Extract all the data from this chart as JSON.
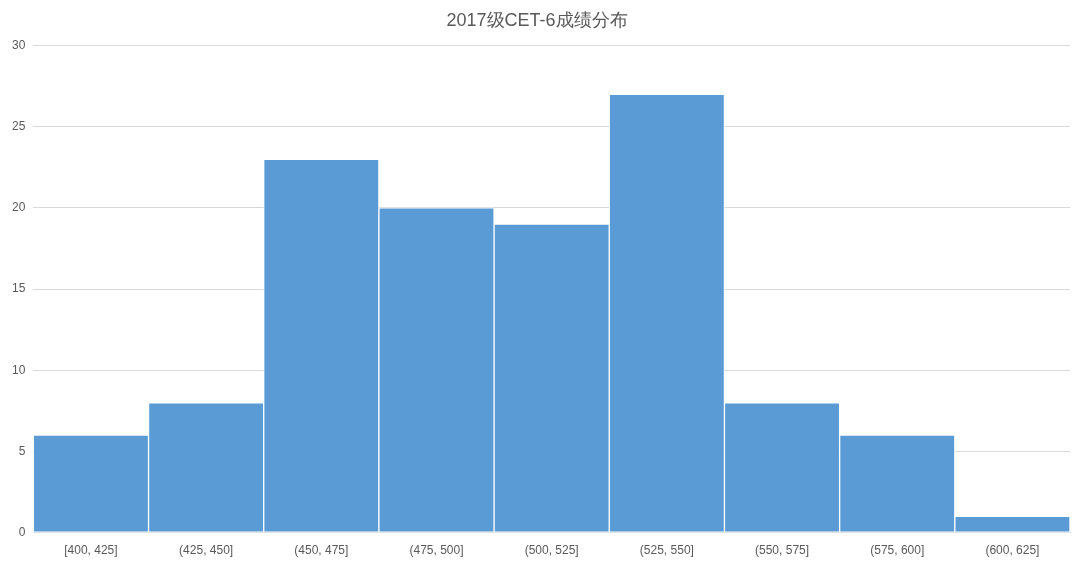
{
  "chart_data": {
    "type": "bar",
    "title": "2017级CET-6成绩分布",
    "categories": [
      "[400, 425]",
      "(425, 450]",
      "(450, 475]",
      "(475, 500]",
      "(500, 525]",
      "(525, 550]",
      "(550, 575]",
      "(575, 600]",
      "(600, 625]"
    ],
    "values": [
      6,
      8,
      23,
      20,
      19,
      27,
      8,
      6,
      1
    ],
    "color": "#5b9bd5",
    "ylim": [
      0,
      30
    ],
    "yticks": [
      0,
      5,
      10,
      15,
      20,
      25,
      30
    ],
    "grid": "y",
    "legend": false
  }
}
